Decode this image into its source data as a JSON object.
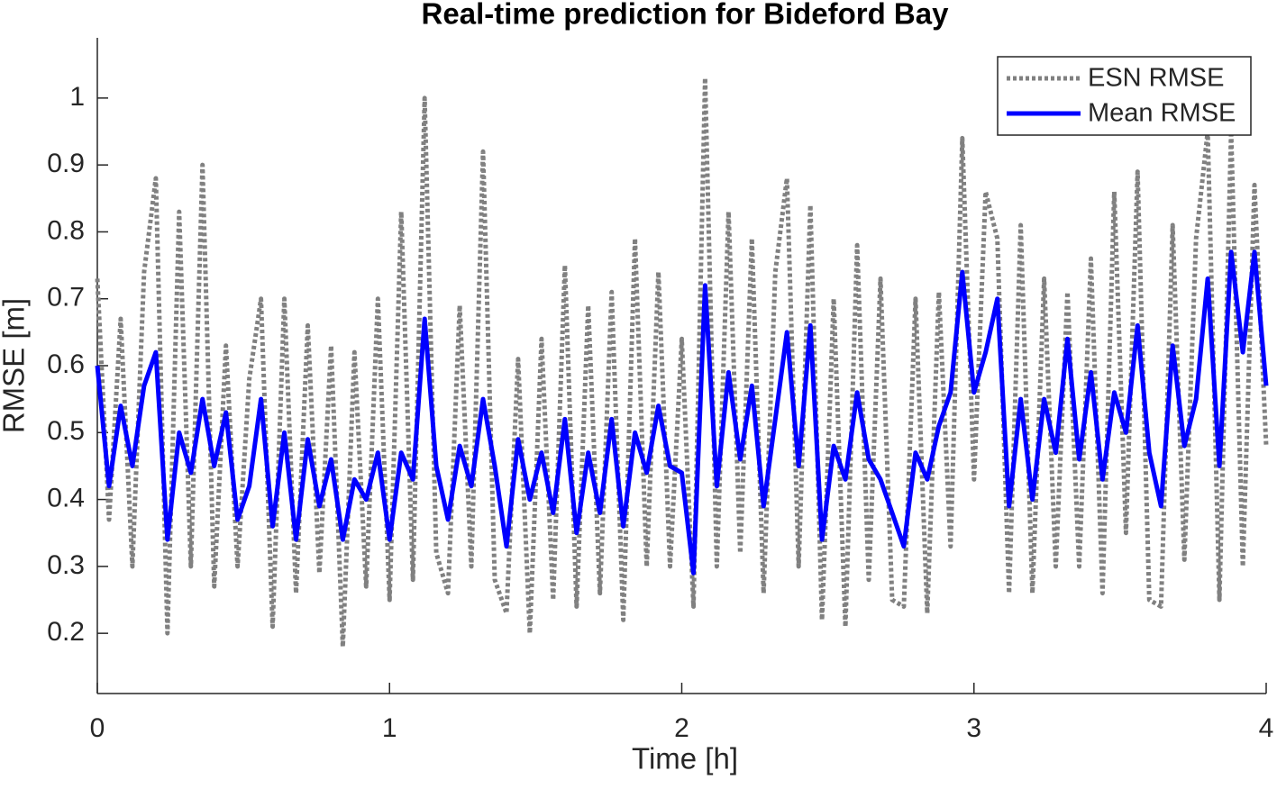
{
  "chart_data": {
    "type": "line",
    "title": "Real-time prediction for Bideford Bay",
    "x_label": "Time [h]",
    "y_label": "RMSE [m]",
    "x": [
      0,
      0.04,
      0.08,
      0.12,
      0.16,
      0.2,
      0.24,
      0.28,
      0.32,
      0.36,
      0.4,
      0.44,
      0.48,
      0.52,
      0.56,
      0.6,
      0.64,
      0.68,
      0.72,
      0.76,
      0.8,
      0.84,
      0.88,
      0.92,
      0.96,
      1,
      1.04,
      1.08,
      1.12,
      1.16,
      1.2,
      1.24,
      1.28,
      1.32,
      1.36,
      1.4,
      1.44,
      1.48,
      1.52,
      1.56,
      1.6,
      1.64,
      1.68,
      1.72,
      1.76,
      1.8,
      1.84,
      1.88,
      1.92,
      1.96,
      2,
      2.04,
      2.08,
      2.12,
      2.16,
      2.2,
      2.24,
      2.28,
      2.32,
      2.36,
      2.4,
      2.44,
      2.48,
      2.52,
      2.56,
      2.6,
      2.64,
      2.68,
      2.72,
      2.76,
      2.8,
      2.84,
      2.88,
      2.92,
      2.96,
      3,
      3.04,
      3.08,
      3.12,
      3.16,
      3.2,
      3.24,
      3.28,
      3.32,
      3.36,
      3.4,
      3.44,
      3.48,
      3.52,
      3.56,
      3.6,
      3.64,
      3.68,
      3.72,
      3.76,
      3.8,
      3.84,
      3.88,
      3.92,
      3.96,
      4
    ],
    "series": [
      {
        "name": "ESN RMSE",
        "color": "#808080",
        "style": "dotted",
        "values": [
          0.73,
          0.37,
          0.67,
          0.3,
          0.74,
          0.88,
          0.2,
          0.83,
          0.3,
          0.9,
          0.27,
          0.63,
          0.3,
          0.58,
          0.7,
          0.21,
          0.7,
          0.26,
          0.66,
          0.29,
          0.63,
          0.18,
          0.62,
          0.27,
          0.7,
          0.25,
          0.83,
          0.28,
          1.0,
          0.32,
          0.26,
          0.69,
          0.3,
          0.92,
          0.28,
          0.23,
          0.61,
          0.2,
          0.64,
          0.25,
          0.75,
          0.24,
          0.69,
          0.26,
          0.71,
          0.22,
          0.79,
          0.3,
          0.74,
          0.3,
          0.64,
          0.24,
          1.03,
          0.3,
          0.83,
          0.32,
          0.79,
          0.26,
          0.74,
          0.88,
          0.3,
          0.84,
          0.22,
          0.7,
          0.21,
          0.78,
          0.28,
          0.73,
          0.25,
          0.24,
          0.7,
          0.23,
          0.71,
          0.33,
          0.94,
          0.43,
          0.86,
          0.79,
          0.26,
          0.81,
          0.26,
          0.73,
          0.3,
          0.71,
          0.3,
          0.76,
          0.26,
          0.86,
          0.35,
          0.89,
          0.25,
          0.24,
          0.81,
          0.31,
          0.79,
          0.95,
          0.25,
          0.95,
          0.3,
          0.87,
          0.48
        ]
      },
      {
        "name": "Mean RMSE",
        "color": "#0000ff",
        "style": "solid",
        "values": [
          0.6,
          0.42,
          0.54,
          0.45,
          0.57,
          0.62,
          0.34,
          0.5,
          0.44,
          0.55,
          0.45,
          0.53,
          0.37,
          0.42,
          0.55,
          0.36,
          0.5,
          0.34,
          0.49,
          0.39,
          0.46,
          0.34,
          0.43,
          0.4,
          0.47,
          0.34,
          0.47,
          0.43,
          0.67,
          0.45,
          0.37,
          0.48,
          0.42,
          0.55,
          0.45,
          0.33,
          0.49,
          0.4,
          0.47,
          0.38,
          0.52,
          0.35,
          0.47,
          0.38,
          0.52,
          0.36,
          0.5,
          0.44,
          0.54,
          0.45,
          0.44,
          0.29,
          0.72,
          0.42,
          0.59,
          0.46,
          0.57,
          0.39,
          0.52,
          0.65,
          0.45,
          0.66,
          0.34,
          0.48,
          0.43,
          0.56,
          0.46,
          0.43,
          0.38,
          0.33,
          0.47,
          0.43,
          0.51,
          0.56,
          0.74,
          0.56,
          0.62,
          0.7,
          0.39,
          0.55,
          0.4,
          0.55,
          0.47,
          0.64,
          0.46,
          0.59,
          0.43,
          0.56,
          0.5,
          0.66,
          0.47,
          0.39,
          0.63,
          0.48,
          0.55,
          0.73,
          0.45,
          0.77,
          0.62,
          0.77,
          0.57
        ]
      }
    ],
    "xlim": [
      0,
      4
    ],
    "xticks": [
      0,
      1,
      2,
      3,
      4
    ],
    "ylim": [
      0.11,
      1.09
    ],
    "yticks": [
      0.2,
      0.3,
      0.4,
      0.5,
      0.6,
      0.7,
      0.8,
      0.9,
      1
    ],
    "legend": "top-right"
  }
}
